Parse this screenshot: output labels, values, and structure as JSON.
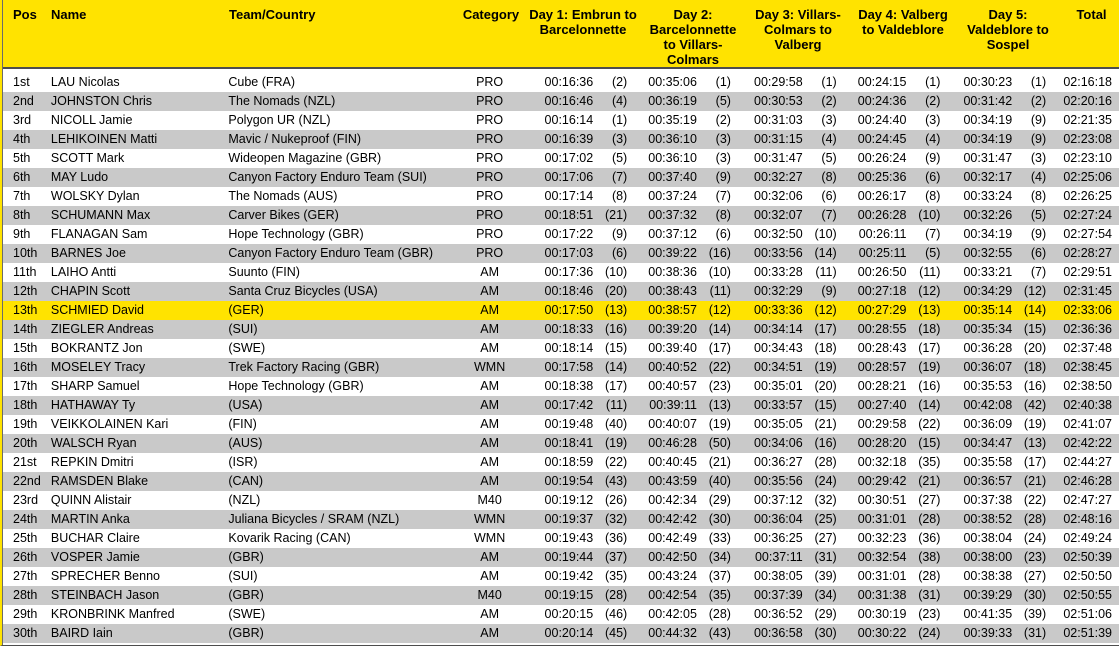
{
  "colors": {
    "header_bg": "#ffe300",
    "highlight_bg": "#ffe300",
    "stripe_bg": "#c9c9c9",
    "border": "#4d4d4d",
    "text": "#000000"
  },
  "table": {
    "columns": [
      {
        "key": "pos",
        "label": "Pos"
      },
      {
        "key": "name",
        "label": "Name"
      },
      {
        "key": "team",
        "label": "Team/Country"
      },
      {
        "key": "cat",
        "label": "Category"
      },
      {
        "key": "day1",
        "label": "Day 1: Embrun to Barcelonnette"
      },
      {
        "key": "day2",
        "label": "Day 2: Barcelonnette to Villars-Colmars"
      },
      {
        "key": "day3",
        "label": "Day 3: Villars-Colmars to Valberg"
      },
      {
        "key": "day4",
        "label": "Day 4: Valberg to Valdeblore"
      },
      {
        "key": "day5",
        "label": "Day 5: Valdeblore to Sospel"
      },
      {
        "key": "total",
        "label": "Total"
      }
    ],
    "rows": [
      {
        "pos": "1st",
        "name": "LAU Nicolas",
        "team": "Cube (FRA)",
        "category": "PRO",
        "day1": {
          "time": "00:16:36",
          "rank": "(2)"
        },
        "day2": {
          "time": "00:35:06",
          "rank": "(1)"
        },
        "day3": {
          "time": "00:29:58",
          "rank": "(1)"
        },
        "day4": {
          "time": "00:24:15",
          "rank": "(1)"
        },
        "day5": {
          "time": "00:30:23",
          "rank": "(1)"
        },
        "total": "02:16:18",
        "highlighted": false
      },
      {
        "pos": "2nd",
        "name": "JOHNSTON Chris",
        "team": "The Nomads (NZL)",
        "category": "PRO",
        "day1": {
          "time": "00:16:46",
          "rank": "(4)"
        },
        "day2": {
          "time": "00:36:19",
          "rank": "(5)"
        },
        "day3": {
          "time": "00:30:53",
          "rank": "(2)"
        },
        "day4": {
          "time": "00:24:36",
          "rank": "(2)"
        },
        "day5": {
          "time": "00:31:42",
          "rank": "(2)"
        },
        "total": "02:20:16",
        "highlighted": false
      },
      {
        "pos": "3rd",
        "name": "NICOLL Jamie",
        "team": "Polygon UR (NZL)",
        "category": "PRO",
        "day1": {
          "time": "00:16:14",
          "rank": "(1)"
        },
        "day2": {
          "time": "00:35:19",
          "rank": "(2)"
        },
        "day3": {
          "time": "00:31:03",
          "rank": "(3)"
        },
        "day4": {
          "time": "00:24:40",
          "rank": "(3)"
        },
        "day5": {
          "time": "00:34:19",
          "rank": "(9)"
        },
        "total": "02:21:35",
        "highlighted": false
      },
      {
        "pos": "4th",
        "name": "LEHIKOINEN Matti",
        "team": "Mavic / Nukeproof (FIN)",
        "category": "PRO",
        "day1": {
          "time": "00:16:39",
          "rank": "(3)"
        },
        "day2": {
          "time": "00:36:10",
          "rank": "(3)"
        },
        "day3": {
          "time": "00:31:15",
          "rank": "(4)"
        },
        "day4": {
          "time": "00:24:45",
          "rank": "(4)"
        },
        "day5": {
          "time": "00:34:19",
          "rank": "(9)"
        },
        "total": "02:23:08",
        "highlighted": false
      },
      {
        "pos": "5th",
        "name": "SCOTT Mark",
        "team": "Wideopen Magazine (GBR)",
        "category": "PRO",
        "day1": {
          "time": "00:17:02",
          "rank": "(5)"
        },
        "day2": {
          "time": "00:36:10",
          "rank": "(3)"
        },
        "day3": {
          "time": "00:31:47",
          "rank": "(5)"
        },
        "day4": {
          "time": "00:26:24",
          "rank": "(9)"
        },
        "day5": {
          "time": "00:31:47",
          "rank": "(3)"
        },
        "total": "02:23:10",
        "highlighted": false
      },
      {
        "pos": "6th",
        "name": "MAY Ludo",
        "team": "Canyon Factory Enduro Team (SUI)",
        "category": "PRO",
        "day1": {
          "time": "00:17:06",
          "rank": "(7)"
        },
        "day2": {
          "time": "00:37:40",
          "rank": "(9)"
        },
        "day3": {
          "time": "00:32:27",
          "rank": "(8)"
        },
        "day4": {
          "time": "00:25:36",
          "rank": "(6)"
        },
        "day5": {
          "time": "00:32:17",
          "rank": "(4)"
        },
        "total": "02:25:06",
        "highlighted": false
      },
      {
        "pos": "7th",
        "name": "WOLSKY Dylan",
        "team": "The Nomads (AUS)",
        "category": "PRO",
        "day1": {
          "time": "00:17:14",
          "rank": "(8)"
        },
        "day2": {
          "time": "00:37:24",
          "rank": "(7)"
        },
        "day3": {
          "time": "00:32:06",
          "rank": "(6)"
        },
        "day4": {
          "time": "00:26:17",
          "rank": "(8)"
        },
        "day5": {
          "time": "00:33:24",
          "rank": "(8)"
        },
        "total": "02:26:25",
        "highlighted": false
      },
      {
        "pos": "8th",
        "name": "SCHUMANN Max",
        "team": "Carver Bikes (GER)",
        "category": "PRO",
        "day1": {
          "time": "00:18:51",
          "rank": "(21)"
        },
        "day2": {
          "time": "00:37:32",
          "rank": "(8)"
        },
        "day3": {
          "time": "00:32:07",
          "rank": "(7)"
        },
        "day4": {
          "time": "00:26:28",
          "rank": "(10)"
        },
        "day5": {
          "time": "00:32:26",
          "rank": "(5)"
        },
        "total": "02:27:24",
        "highlighted": false
      },
      {
        "pos": "9th",
        "name": "FLANAGAN Sam",
        "team": "Hope Technology (GBR)",
        "category": "PRO",
        "day1": {
          "time": "00:17:22",
          "rank": "(9)"
        },
        "day2": {
          "time": "00:37:12",
          "rank": "(6)"
        },
        "day3": {
          "time": "00:32:50",
          "rank": "(10)"
        },
        "day4": {
          "time": "00:26:11",
          "rank": "(7)"
        },
        "day5": {
          "time": "00:34:19",
          "rank": "(9)"
        },
        "total": "02:27:54",
        "highlighted": false
      },
      {
        "pos": "10th",
        "name": "BARNES Joe",
        "team": "Canyon Factory Enduro Team (GBR)",
        "category": "PRO",
        "day1": {
          "time": "00:17:03",
          "rank": "(6)"
        },
        "day2": {
          "time": "00:39:22",
          "rank": "(16)"
        },
        "day3": {
          "time": "00:33:56",
          "rank": "(14)"
        },
        "day4": {
          "time": "00:25:11",
          "rank": "(5)"
        },
        "day5": {
          "time": "00:32:55",
          "rank": "(6)"
        },
        "total": "02:28:27",
        "highlighted": false
      },
      {
        "pos": "11th",
        "name": "LAIHO Antti",
        "team": "Suunto (FIN)",
        "category": "AM",
        "day1": {
          "time": "00:17:36",
          "rank": "(10)"
        },
        "day2": {
          "time": "00:38:36",
          "rank": "(10)"
        },
        "day3": {
          "time": "00:33:28",
          "rank": "(11)"
        },
        "day4": {
          "time": "00:26:50",
          "rank": "(11)"
        },
        "day5": {
          "time": "00:33:21",
          "rank": "(7)"
        },
        "total": "02:29:51",
        "highlighted": false
      },
      {
        "pos": "12th",
        "name": "CHAPIN Scott",
        "team": "Santa Cruz Bicycles (USA)",
        "category": "AM",
        "day1": {
          "time": "00:18:46",
          "rank": "(20)"
        },
        "day2": {
          "time": "00:38:43",
          "rank": "(11)"
        },
        "day3": {
          "time": "00:32:29",
          "rank": "(9)"
        },
        "day4": {
          "time": "00:27:18",
          "rank": "(12)"
        },
        "day5": {
          "time": "00:34:29",
          "rank": "(12)"
        },
        "total": "02:31:45",
        "highlighted": false
      },
      {
        "pos": "13th",
        "name": "SCHMIED David",
        "team": "(GER)",
        "category": "AM",
        "day1": {
          "time": "00:17:50",
          "rank": "(13)"
        },
        "day2": {
          "time": "00:38:57",
          "rank": "(12)"
        },
        "day3": {
          "time": "00:33:36",
          "rank": "(12)"
        },
        "day4": {
          "time": "00:27:29",
          "rank": "(13)"
        },
        "day5": {
          "time": "00:35:14",
          "rank": "(14)"
        },
        "total": "02:33:06",
        "highlighted": true
      },
      {
        "pos": "14th",
        "name": "ZIEGLER Andreas",
        "team": "(SUI)",
        "category": "AM",
        "day1": {
          "time": "00:18:33",
          "rank": "(16)"
        },
        "day2": {
          "time": "00:39:20",
          "rank": "(14)"
        },
        "day3": {
          "time": "00:34:14",
          "rank": "(17)"
        },
        "day4": {
          "time": "00:28:55",
          "rank": "(18)"
        },
        "day5": {
          "time": "00:35:34",
          "rank": "(15)"
        },
        "total": "02:36:36",
        "highlighted": false
      },
      {
        "pos": "15th",
        "name": "BOKRANTZ Jon",
        "team": "(SWE)",
        "category": "AM",
        "day1": {
          "time": "00:18:14",
          "rank": "(15)"
        },
        "day2": {
          "time": "00:39:40",
          "rank": "(17)"
        },
        "day3": {
          "time": "00:34:43",
          "rank": "(18)"
        },
        "day4": {
          "time": "00:28:43",
          "rank": "(17)"
        },
        "day5": {
          "time": "00:36:28",
          "rank": "(20)"
        },
        "total": "02:37:48",
        "highlighted": false
      },
      {
        "pos": "16th",
        "name": "MOSELEY Tracy",
        "team": "Trek Factory Racing (GBR)",
        "category": "WMN",
        "day1": {
          "time": "00:17:58",
          "rank": "(14)"
        },
        "day2": {
          "time": "00:40:52",
          "rank": "(22)"
        },
        "day3": {
          "time": "00:34:51",
          "rank": "(19)"
        },
        "day4": {
          "time": "00:28:57",
          "rank": "(19)"
        },
        "day5": {
          "time": "00:36:07",
          "rank": "(18)"
        },
        "total": "02:38:45",
        "highlighted": false
      },
      {
        "pos": "17th",
        "name": "SHARP Samuel",
        "team": "Hope Technology (GBR)",
        "category": "AM",
        "day1": {
          "time": "00:18:38",
          "rank": "(17)"
        },
        "day2": {
          "time": "00:40:57",
          "rank": "(23)"
        },
        "day3": {
          "time": "00:35:01",
          "rank": "(20)"
        },
        "day4": {
          "time": "00:28:21",
          "rank": "(16)"
        },
        "day5": {
          "time": "00:35:53",
          "rank": "(16)"
        },
        "total": "02:38:50",
        "highlighted": false
      },
      {
        "pos": "18th",
        "name": "HATHAWAY Ty",
        "team": "(USA)",
        "category": "AM",
        "day1": {
          "time": "00:17:42",
          "rank": "(11)"
        },
        "day2": {
          "time": "00:39:11",
          "rank": "(13)"
        },
        "day3": {
          "time": "00:33:57",
          "rank": "(15)"
        },
        "day4": {
          "time": "00:27:40",
          "rank": "(14)"
        },
        "day5": {
          "time": "00:42:08",
          "rank": "(42)"
        },
        "total": "02:40:38",
        "highlighted": false
      },
      {
        "pos": "19th",
        "name": "VEIKKOLAINEN Kari",
        "team": "(FIN)",
        "category": "AM",
        "day1": {
          "time": "00:19:48",
          "rank": "(40)"
        },
        "day2": {
          "time": "00:40:07",
          "rank": "(19)"
        },
        "day3": {
          "time": "00:35:05",
          "rank": "(21)"
        },
        "day4": {
          "time": "00:29:58",
          "rank": "(22)"
        },
        "day5": {
          "time": "00:36:09",
          "rank": "(19)"
        },
        "total": "02:41:07",
        "highlighted": false
      },
      {
        "pos": "20th",
        "name": "WALSCH Ryan",
        "team": "(AUS)",
        "category": "AM",
        "day1": {
          "time": "00:18:41",
          "rank": "(19)"
        },
        "day2": {
          "time": "00:46:28",
          "rank": "(50)"
        },
        "day3": {
          "time": "00:34:06",
          "rank": "(16)"
        },
        "day4": {
          "time": "00:28:20",
          "rank": "(15)"
        },
        "day5": {
          "time": "00:34:47",
          "rank": "(13)"
        },
        "total": "02:42:22",
        "highlighted": false
      },
      {
        "pos": "21st",
        "name": "REPKIN Dmitri",
        "team": "(ISR)",
        "category": "AM",
        "day1": {
          "time": "00:18:59",
          "rank": "(22)"
        },
        "day2": {
          "time": "00:40:45",
          "rank": "(21)"
        },
        "day3": {
          "time": "00:36:27",
          "rank": "(28)"
        },
        "day4": {
          "time": "00:32:18",
          "rank": "(35)"
        },
        "day5": {
          "time": "00:35:58",
          "rank": "(17)"
        },
        "total": "02:44:27",
        "highlighted": false
      },
      {
        "pos": "22nd",
        "name": "RAMSDEN Blake",
        "team": "(CAN)",
        "category": "AM",
        "day1": {
          "time": "00:19:54",
          "rank": "(43)"
        },
        "day2": {
          "time": "00:43:59",
          "rank": "(40)"
        },
        "day3": {
          "time": "00:35:56",
          "rank": "(24)"
        },
        "day4": {
          "time": "00:29:42",
          "rank": "(21)"
        },
        "day5": {
          "time": "00:36:57",
          "rank": "(21)"
        },
        "total": "02:46:28",
        "highlighted": false
      },
      {
        "pos": "23rd",
        "name": "QUINN Alistair",
        "team": "(NZL)",
        "category": "M40",
        "day1": {
          "time": "00:19:12",
          "rank": "(26)"
        },
        "day2": {
          "time": "00:42:34",
          "rank": "(29)"
        },
        "day3": {
          "time": "00:37:12",
          "rank": "(32)"
        },
        "day4": {
          "time": "00:30:51",
          "rank": "(27)"
        },
        "day5": {
          "time": "00:37:38",
          "rank": "(22)"
        },
        "total": "02:47:27",
        "highlighted": false
      },
      {
        "pos": "24th",
        "name": "MARTIN Anka",
        "team": "Juliana Bicycles / SRAM (NZL)",
        "category": "WMN",
        "day1": {
          "time": "00:19:37",
          "rank": "(32)"
        },
        "day2": {
          "time": "00:42:42",
          "rank": "(30)"
        },
        "day3": {
          "time": "00:36:04",
          "rank": "(25)"
        },
        "day4": {
          "time": "00:31:01",
          "rank": "(28)"
        },
        "day5": {
          "time": "00:38:52",
          "rank": "(28)"
        },
        "total": "02:48:16",
        "highlighted": false
      },
      {
        "pos": "25th",
        "name": "BUCHAR Claire",
        "team": "Kovarik Racing (CAN)",
        "category": "WMN",
        "day1": {
          "time": "00:19:43",
          "rank": "(36)"
        },
        "day2": {
          "time": "00:42:49",
          "rank": "(33)"
        },
        "day3": {
          "time": "00:36:25",
          "rank": "(27)"
        },
        "day4": {
          "time": "00:32:23",
          "rank": "(36)"
        },
        "day5": {
          "time": "00:38:04",
          "rank": "(24)"
        },
        "total": "02:49:24",
        "highlighted": false
      },
      {
        "pos": "26th",
        "name": "VOSPER Jamie",
        "team": "(GBR)",
        "category": "AM",
        "day1": {
          "time": "00:19:44",
          "rank": "(37)"
        },
        "day2": {
          "time": "00:42:50",
          "rank": "(34)"
        },
        "day3": {
          "time": "00:37:11",
          "rank": "(31)"
        },
        "day4": {
          "time": "00:32:54",
          "rank": "(38)"
        },
        "day5": {
          "time": "00:38:00",
          "rank": "(23)"
        },
        "total": "02:50:39",
        "highlighted": false
      },
      {
        "pos": "27th",
        "name": "SPRECHER Benno",
        "team": "(SUI)",
        "category": "AM",
        "day1": {
          "time": "00:19:42",
          "rank": "(35)"
        },
        "day2": {
          "time": "00:43:24",
          "rank": "(37)"
        },
        "day3": {
          "time": "00:38:05",
          "rank": "(39)"
        },
        "day4": {
          "time": "00:31:01",
          "rank": "(28)"
        },
        "day5": {
          "time": "00:38:38",
          "rank": "(27)"
        },
        "total": "02:50:50",
        "highlighted": false
      },
      {
        "pos": "28th",
        "name": "STEINBACH Jason",
        "team": "(GBR)",
        "category": "M40",
        "day1": {
          "time": "00:19:15",
          "rank": "(28)"
        },
        "day2": {
          "time": "00:42:54",
          "rank": "(35)"
        },
        "day3": {
          "time": "00:37:39",
          "rank": "(34)"
        },
        "day4": {
          "time": "00:31:38",
          "rank": "(31)"
        },
        "day5": {
          "time": "00:39:29",
          "rank": "(30)"
        },
        "total": "02:50:55",
        "highlighted": false
      },
      {
        "pos": "29th",
        "name": "KRONBRINK Manfred",
        "team": "(SWE)",
        "category": "AM",
        "day1": {
          "time": "00:20:15",
          "rank": "(46)"
        },
        "day2": {
          "time": "00:42:05",
          "rank": "(28)"
        },
        "day3": {
          "time": "00:36:52",
          "rank": "(29)"
        },
        "day4": {
          "time": "00:30:19",
          "rank": "(23)"
        },
        "day5": {
          "time": "00:41:35",
          "rank": "(39)"
        },
        "total": "02:51:06",
        "highlighted": false
      },
      {
        "pos": "30th",
        "name": "BAIRD Iain",
        "team": "(GBR)",
        "category": "AM",
        "day1": {
          "time": "00:20:14",
          "rank": "(45)"
        },
        "day2": {
          "time": "00:44:32",
          "rank": "(43)"
        },
        "day3": {
          "time": "00:36:58",
          "rank": "(30)"
        },
        "day4": {
          "time": "00:30:22",
          "rank": "(24)"
        },
        "day5": {
          "time": "00:39:33",
          "rank": "(31)"
        },
        "total": "02:51:39",
        "highlighted": false
      }
    ]
  }
}
